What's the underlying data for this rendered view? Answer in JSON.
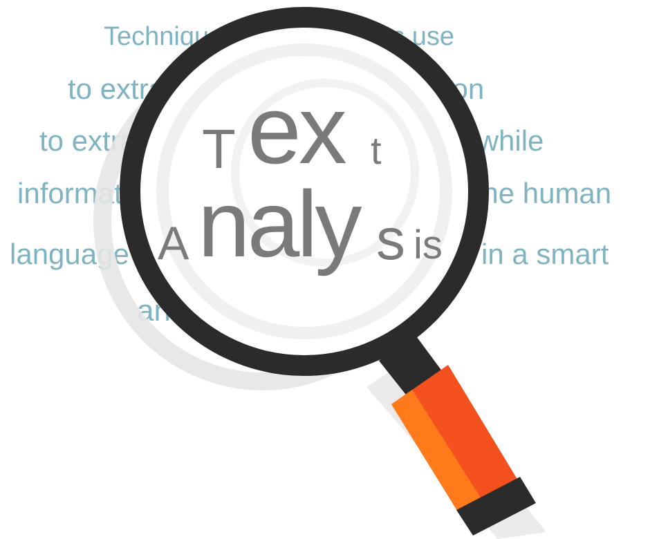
{
  "background_text": {
    "line1": "Technique that computers use",
    "line2": "to extract worthwhile information",
    "line3_left": "to extract",
    "line3_right": "worthwhile",
    "line4_left": "information",
    "line4_right": "from the human",
    "line5_left": "language",
    "line5_right": "in a smart",
    "line6": "and efficient manner."
  },
  "headline": {
    "T": "T",
    "ex": "ex",
    "t": "t",
    "A": "A",
    "aly": "naly",
    "s": "s",
    "is": "is"
  },
  "colors": {
    "text_teal": "#7fb3c2",
    "headline_gray": "#7a7a7a",
    "lens_frame": "#2b2b2b",
    "handle_orange": "#f4511e",
    "handle_light": "#ff7a1a",
    "shadow": "#e6e6e6"
  },
  "icons": {
    "magnifier": "magnifying-glass-icon"
  }
}
